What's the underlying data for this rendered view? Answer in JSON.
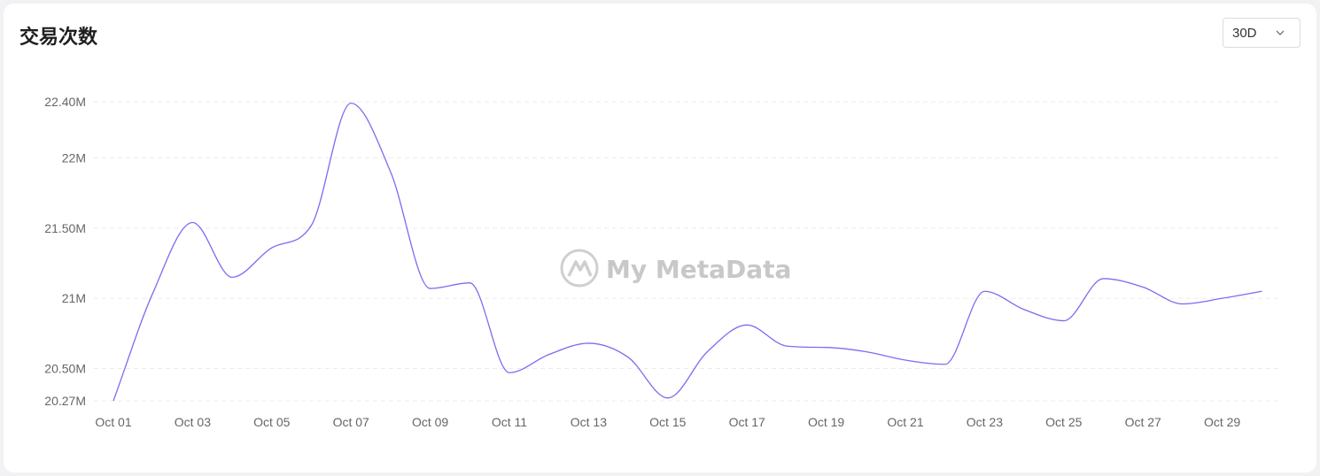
{
  "header": {
    "title": "交易次数",
    "range_select": {
      "value": "30D"
    }
  },
  "watermark": {
    "text": "My MetaData"
  },
  "chart_data": {
    "type": "line",
    "title": "交易次数",
    "xlabel": "",
    "ylabel": "",
    "grid": true,
    "ylim": [
      20.27,
      22.4
    ],
    "y_ticks": [
      {
        "value": 22.4,
        "label": "22.40M"
      },
      {
        "value": 22.0,
        "label": "22M"
      },
      {
        "value": 21.5,
        "label": "21.50M"
      },
      {
        "value": 21.0,
        "label": "21M"
      },
      {
        "value": 20.5,
        "label": "20.50M"
      },
      {
        "value": 20.27,
        "label": "20.27M"
      }
    ],
    "x_tick_labels": [
      "Oct 01",
      "Oct 03",
      "Oct 05",
      "Oct 07",
      "Oct 09",
      "Oct 11",
      "Oct 13",
      "Oct 15",
      "Oct 17",
      "Oct 19",
      "Oct 21",
      "Oct 23",
      "Oct 25",
      "Oct 27",
      "Oct 29"
    ],
    "x": [
      "Oct 01",
      "Oct 02",
      "Oct 03",
      "Oct 04",
      "Oct 05",
      "Oct 06",
      "Oct 07",
      "Oct 08",
      "Oct 09",
      "Oct 10",
      "Oct 11",
      "Oct 12",
      "Oct 13",
      "Oct 14",
      "Oct 15",
      "Oct 16",
      "Oct 17",
      "Oct 18",
      "Oct 19",
      "Oct 20",
      "Oct 21",
      "Oct 22",
      "Oct 23",
      "Oct 24",
      "Oct 25",
      "Oct 26",
      "Oct 27",
      "Oct 28",
      "Oct 29",
      "Oct 30"
    ],
    "series": [
      {
        "values": [
          20.27,
          21.04,
          21.54,
          21.15,
          21.36,
          21.52,
          22.39,
          21.9,
          21.07,
          21.11,
          20.47,
          20.6,
          20.68,
          20.58,
          20.29,
          20.62,
          20.81,
          20.66,
          20.65,
          20.62,
          20.56,
          20.53,
          21.05,
          20.92,
          20.84,
          21.14,
          21.08,
          20.96,
          21.0,
          21.05
        ],
        "color": "#7b6cf0"
      }
    ]
  }
}
